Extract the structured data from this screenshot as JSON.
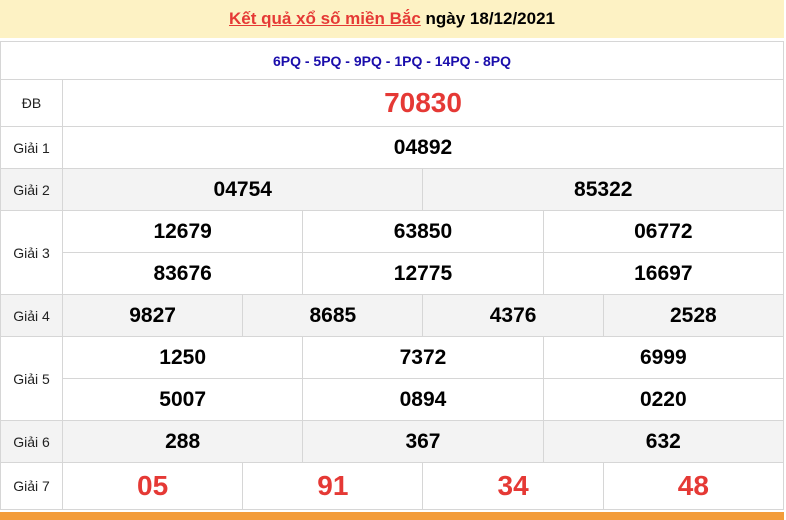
{
  "header": {
    "link": "Kết quả xổ số miền Bắc",
    "date": "ngày 18/12/2021"
  },
  "codes": "6PQ - 5PQ - 9PQ - 1PQ - 14PQ - 8PQ",
  "prizes": [
    {
      "label": "ĐB",
      "numbers": [
        "70830"
      ]
    },
    {
      "label": "Giải 1",
      "numbers": [
        "04892"
      ]
    },
    {
      "label": "Giải 2",
      "numbers": [
        "04754",
        "85322"
      ]
    },
    {
      "label": "Giải 3",
      "numbers": [
        "12679",
        "63850",
        "06772",
        "83676",
        "12775",
        "16697"
      ]
    },
    {
      "label": "Giải 4",
      "numbers": [
        "9827",
        "8685",
        "4376",
        "2528"
      ]
    },
    {
      "label": "Giải 5",
      "numbers": [
        "1250",
        "7372",
        "6999",
        "5007",
        "0894",
        "0220"
      ]
    },
    {
      "label": "Giải 6",
      "numbers": [
        "288",
        "367",
        "632"
      ]
    },
    {
      "label": "Giải 7",
      "numbers": [
        "05",
        "91",
        "34",
        "48"
      ]
    }
  ],
  "colors": {
    "accent": "#e53935",
    "header_bg": "#fdf2c4",
    "codes": "#1a0dab",
    "bar": "#f39c3a"
  }
}
